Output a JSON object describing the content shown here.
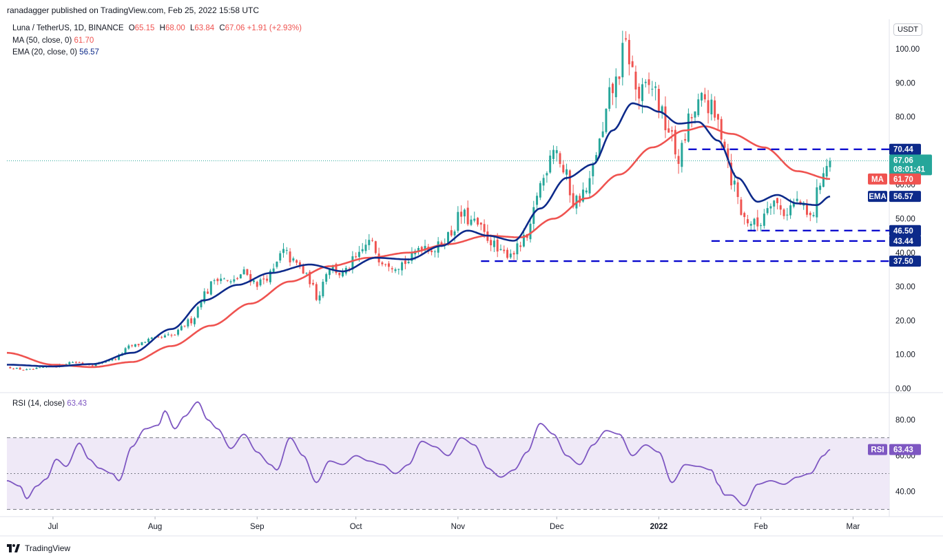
{
  "header": {
    "publisher": "ranadagger published on TradingView.com, Feb 25, 2022 15:58 UTC",
    "symbol": "Luna / TetherUS, 1D, BINANCE",
    "o_label": "O",
    "o_value": "65.15",
    "h_label": "H",
    "h_value": "68.00",
    "l_label": "L",
    "l_value": "63.84",
    "c_label": "C",
    "c_value": "67.06",
    "change": "+1.91 (+2.93%)",
    "ma_label": "MA (50, close, 0)",
    "ma_value": "61.70",
    "ema_label": "EMA (20, close, 0)",
    "ema_value": "56.57",
    "currency_button": "USDT"
  },
  "rsi_header": {
    "label": "RSI (14, close)",
    "value": "63.43"
  },
  "footer": {
    "brand": "TradingView"
  },
  "colors": {
    "up": "#26a69a",
    "down": "#ef5350",
    "ma": "#ef5350",
    "ema": "#0d2a8a",
    "rsi": "#7e57c2",
    "level": "#0000cc",
    "rsi_band": "#ede7f6"
  },
  "chart_data": [
    {
      "type": "candlestick",
      "title": "Luna / TetherUS, 1D, BINANCE",
      "y_ticks": [
        "100.00",
        "90.00",
        "80.00",
        "70.00",
        "60.00",
        "50.00",
        "40.00",
        "30.00",
        "20.00",
        "10.00",
        "0.00"
      ],
      "ylim": [
        0,
        104
      ],
      "x_ticks": [
        {
          "label": "Jul",
          "day": 8
        },
        {
          "label": "Aug",
          "day": 39
        },
        {
          "label": "Sep",
          "day": 70
        },
        {
          "label": "Oct",
          "day": 100
        },
        {
          "label": "Nov",
          "day": 131
        },
        {
          "label": "Dec",
          "day": 161
        },
        {
          "label": "2022",
          "day": 192
        },
        {
          "label": "Feb",
          "day": 223
        },
        {
          "label": "Mar",
          "day": 251
        }
      ],
      "x_range_days": [
        -6,
        262
      ],
      "close_anchors": [
        [
          -6,
          6.2
        ],
        [
          0,
          5.5
        ],
        [
          8,
          6.5
        ],
        [
          14,
          7.8
        ],
        [
          20,
          7.0
        ],
        [
          26,
          8.5
        ],
        [
          32,
          12.5
        ],
        [
          38,
          14.5
        ],
        [
          44,
          15.5
        ],
        [
          50,
          20.0
        ],
        [
          54,
          28.0
        ],
        [
          58,
          33.0
        ],
        [
          62,
          31.0
        ],
        [
          66,
          34.0
        ],
        [
          70,
          31.0
        ],
        [
          74,
          33.5
        ],
        [
          78,
          40.0
        ],
        [
          82,
          36.5
        ],
        [
          86,
          32.0
        ],
        [
          88,
          27.0
        ],
        [
          92,
          36.0
        ],
        [
          96,
          33.5
        ],
        [
          100,
          38.0
        ],
        [
          104,
          43.0
        ],
        [
          108,
          38.0
        ],
        [
          112,
          36.5
        ],
        [
          116,
          37.5
        ],
        [
          120,
          42.5
        ],
        [
          124,
          41.0
        ],
        [
          128,
          45.0
        ],
        [
          132,
          51.0
        ],
        [
          136,
          48.5
        ],
        [
          140,
          44.5
        ],
        [
          144,
          39.5
        ],
        [
          148,
          40.5
        ],
        [
          152,
          44.0
        ],
        [
          156,
          60.0
        ],
        [
          160,
          72.0
        ],
        [
          164,
          62.0
        ],
        [
          166,
          55.0
        ],
        [
          170,
          58.0
        ],
        [
          174,
          72.0
        ],
        [
          178,
          88.0
        ],
        [
          182,
          100.0
        ],
        [
          186,
          86.0
        ],
        [
          190,
          89.0
        ],
        [
          194,
          78.0
        ],
        [
          198,
          68.0
        ],
        [
          202,
          80.0
        ],
        [
          206,
          85.0
        ],
        [
          210,
          78.0
        ],
        [
          212,
          73.0
        ],
        [
          214,
          62.0
        ],
        [
          218,
          50.0
        ],
        [
          222,
          48.0
        ],
        [
          226,
          56.0
        ],
        [
          230,
          52.0
        ],
        [
          234,
          55.0
        ],
        [
          238,
          50.0
        ],
        [
          242,
          64.0
        ],
        [
          244,
          67.06
        ]
      ],
      "ma_anchors": [
        [
          -6,
          10.5
        ],
        [
          8,
          7.0
        ],
        [
          20,
          6.3
        ],
        [
          32,
          7.8
        ],
        [
          44,
          12.5
        ],
        [
          56,
          18.5
        ],
        [
          68,
          25.0
        ],
        [
          80,
          31.5
        ],
        [
          92,
          36.0
        ],
        [
          104,
          38.5
        ],
        [
          116,
          40.0
        ],
        [
          128,
          42.5
        ],
        [
          140,
          45.0
        ],
        [
          150,
          44.5
        ],
        [
          160,
          50.0
        ],
        [
          170,
          56.0
        ],
        [
          180,
          63.0
        ],
        [
          190,
          71.0
        ],
        [
          200,
          76.0
        ],
        [
          206,
          77.2
        ],
        [
          214,
          75.0
        ],
        [
          224,
          71.0
        ],
        [
          234,
          64.0
        ],
        [
          244,
          61.7
        ]
      ],
      "ema_anchors": [
        [
          -6,
          7.0
        ],
        [
          8,
          6.5
        ],
        [
          20,
          7.2
        ],
        [
          32,
          10.5
        ],
        [
          44,
          17.5
        ],
        [
          54,
          26.0
        ],
        [
          64,
          30.5
        ],
        [
          74,
          34.0
        ],
        [
          86,
          36.5
        ],
        [
          96,
          34.5
        ],
        [
          106,
          38.5
        ],
        [
          116,
          38.0
        ],
        [
          126,
          42.0
        ],
        [
          134,
          46.5
        ],
        [
          140,
          45.0
        ],
        [
          148,
          43.5
        ],
        [
          156,
          53.0
        ],
        [
          164,
          62.0
        ],
        [
          172,
          66.0
        ],
        [
          178,
          76.0
        ],
        [
          184,
          84.0
        ],
        [
          188,
          83.0
        ],
        [
          192,
          81.5
        ],
        [
          198,
          78.0
        ],
        [
          204,
          78.5
        ],
        [
          210,
          73.0
        ],
        [
          216,
          62.0
        ],
        [
          222,
          55.0
        ],
        [
          228,
          57.0
        ],
        [
          234,
          54.5
        ],
        [
          240,
          54.0
        ],
        [
          244,
          56.57
        ]
      ],
      "levels": [
        {
          "label": "70.44",
          "value": 70.44,
          "from_day": 201
        },
        {
          "label": "46.50",
          "value": 46.5,
          "from_day": 219
        },
        {
          "label": "43.44",
          "value": 43.44,
          "from_day": 208
        },
        {
          "label": "37.50",
          "value": 37.5,
          "from_day": 138
        }
      ],
      "last_price": {
        "value": 67.06,
        "label": "67.06",
        "countdown": "08:01:41"
      },
      "ma_tag": {
        "name": "MA",
        "value": 61.7,
        "label": "61.70"
      },
      "ema_tag": {
        "name": "EMA",
        "value": 56.57,
        "label": "56.57"
      }
    },
    {
      "type": "line",
      "title": "RSI (14, close)",
      "y_ticks": [
        "80.00",
        "60.00",
        "40.00"
      ],
      "ylim": [
        26,
        94
      ],
      "overbought": 70,
      "oversold": 30,
      "midline": 50,
      "rsi_anchors": [
        [
          -6,
          46
        ],
        [
          -2,
          43
        ],
        [
          0,
          36
        ],
        [
          3,
          43
        ],
        [
          6,
          47
        ],
        [
          9,
          58
        ],
        [
          12,
          54
        ],
        [
          16,
          67
        ],
        [
          19,
          58
        ],
        [
          22,
          53
        ],
        [
          26,
          50
        ],
        [
          28,
          46
        ],
        [
          32,
          65
        ],
        [
          36,
          75
        ],
        [
          40,
          77
        ],
        [
          42,
          85
        ],
        [
          45,
          75
        ],
        [
          48,
          82
        ],
        [
          52,
          90
        ],
        [
          55,
          80
        ],
        [
          58,
          75
        ],
        [
          62,
          64
        ],
        [
          66,
          72
        ],
        [
          70,
          62
        ],
        [
          74,
          55
        ],
        [
          76,
          52
        ],
        [
          80,
          70
        ],
        [
          84,
          60
        ],
        [
          88,
          45
        ],
        [
          92,
          57
        ],
        [
          96,
          55
        ],
        [
          100,
          60
        ],
        [
          104,
          57
        ],
        [
          108,
          55
        ],
        [
          112,
          50
        ],
        [
          116,
          55
        ],
        [
          120,
          68
        ],
        [
          124,
          65
        ],
        [
          128,
          60
        ],
        [
          132,
          70
        ],
        [
          136,
          66
        ],
        [
          140,
          53
        ],
        [
          144,
          48
        ],
        [
          148,
          52
        ],
        [
          152,
          62
        ],
        [
          156,
          78
        ],
        [
          160,
          72
        ],
        [
          164,
          60
        ],
        [
          168,
          55
        ],
        [
          172,
          66
        ],
        [
          176,
          74
        ],
        [
          180,
          72
        ],
        [
          184,
          60
        ],
        [
          188,
          66
        ],
        [
          192,
          62
        ],
        [
          196,
          45
        ],
        [
          200,
          55
        ],
        [
          204,
          54
        ],
        [
          208,
          52
        ],
        [
          210,
          44
        ],
        [
          212,
          38
        ],
        [
          214,
          38
        ],
        [
          218,
          32
        ],
        [
          222,
          44
        ],
        [
          226,
          46
        ],
        [
          230,
          44
        ],
        [
          234,
          48
        ],
        [
          238,
          50
        ],
        [
          242,
          60
        ],
        [
          244,
          63.43
        ]
      ],
      "tag": {
        "name": "RSI",
        "value": 63.43,
        "label": "63.43"
      }
    }
  ]
}
